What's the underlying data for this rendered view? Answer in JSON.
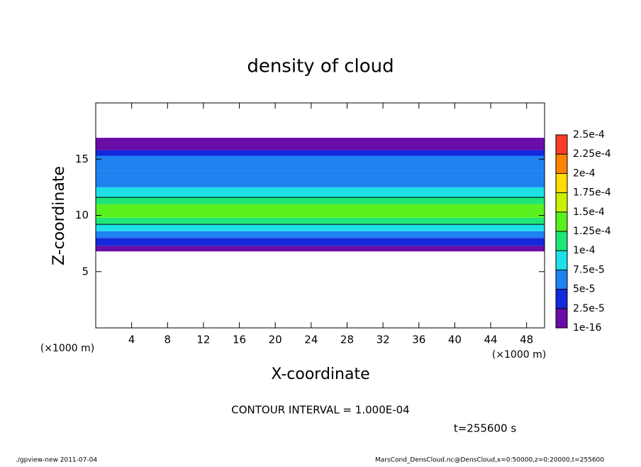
{
  "chart_data": {
    "type": "contour",
    "title": "density of cloud",
    "x_label": "X-coordinate",
    "y_label": "Z-coordinate",
    "x_unit": "(×1000 m)",
    "y_unit": "(×1000 m)",
    "xlim": [
      0,
      50
    ],
    "ylim": [
      0,
      20
    ],
    "xticks": [
      4,
      8,
      12,
      16,
      20,
      24,
      28,
      32,
      36,
      40,
      44,
      48
    ],
    "yticks": [
      5,
      10,
      15
    ],
    "z_edges": [
      6.8,
      7.3,
      8,
      8.6,
      9.2,
      9.8,
      11,
      11.6,
      12.5,
      14,
      15.3,
      15.8,
      16.9
    ],
    "values": [
      1e-05,
      3e-05,
      6e-05,
      8e-05,
      0.000105,
      0.00013,
      0.000105,
      8e-05,
      6.5e-05,
      5.5e-05,
      3e-05,
      1e-05
    ],
    "colorbar": {
      "levels": [
        {
          "value": 1e-16,
          "label": "1e-16"
        },
        {
          "value": 2.5e-05,
          "label": "2.5e-5"
        },
        {
          "value": 5e-05,
          "label": "5e-5"
        },
        {
          "value": 7.5e-05,
          "label": "7.5e-5"
        },
        {
          "value": 0.0001,
          "label": "1e-4"
        },
        {
          "value": 0.000125,
          "label": "1.25e-4"
        },
        {
          "value": 0.00015,
          "label": "1.5e-4"
        },
        {
          "value": 0.000175,
          "label": "1.75e-4"
        },
        {
          "value": 0.0002,
          "label": "2e-4"
        },
        {
          "value": 0.000225,
          "label": "2.25e-4"
        },
        {
          "value": 0.00025,
          "label": "2.5e-4"
        }
      ],
      "colors": [
        "#6a0ca8",
        "#1428dc",
        "#1e82f0",
        "#1ee0e6",
        "#1ee678",
        "#5af01e",
        "#c8f000",
        "#ffdc00",
        "#ff8200",
        "#ff3c28"
      ]
    },
    "contour_interval": {
      "value": 0.0001,
      "label": "CONTOUR INTERVAL = 1.000E-04"
    },
    "time_label": "t=255600 s",
    "footer_left": "./gpview-new  2011-07-04",
    "footer_right": "MarsCond_DensCloud.nc@DensCloud,x=0:50000,z=0:20000,t=255600"
  }
}
